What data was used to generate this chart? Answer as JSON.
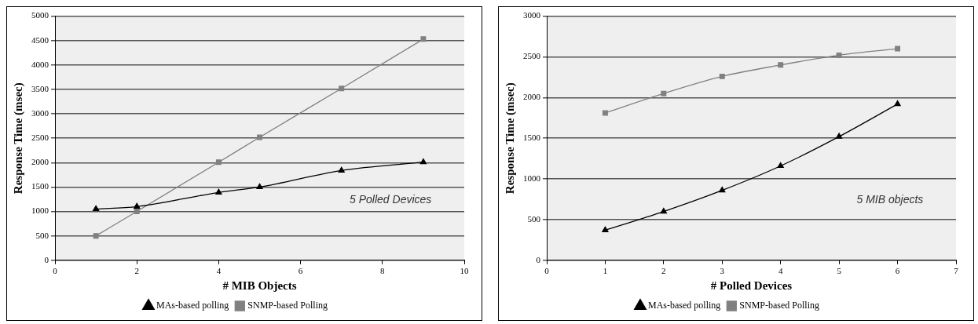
{
  "chart_data": [
    {
      "type": "line",
      "xlabel": "# MIB Objects",
      "ylabel": "Response Time (msec)",
      "xlim": [
        0,
        10
      ],
      "xticks": [
        0,
        2,
        4,
        6,
        8,
        10
      ],
      "ylim": [
        0,
        5000
      ],
      "yticks": [
        0,
        500,
        1000,
        1500,
        2000,
        2500,
        3000,
        3500,
        4000,
        4500,
        5000
      ],
      "grid": "y",
      "legend": "bottom",
      "annotations": [
        "5 Polled Devices"
      ],
      "x": [
        1,
        2,
        4,
        5,
        7,
        9
      ],
      "series": [
        {
          "name": "MAs-based polling",
          "color": "#000000",
          "marker": "triangle",
          "values": [
            1050,
            1100,
            1390,
            1500,
            1840,
            2010
          ]
        },
        {
          "name": "SNMP-based Polling",
          "color": "#808080",
          "marker": "square",
          "values": [
            500,
            1000,
            2010,
            2520,
            3520,
            4530
          ]
        }
      ]
    },
    {
      "type": "line",
      "xlabel": "# Polled Devices",
      "ylabel": "Response Time (msec)",
      "xlim": [
        0,
        7
      ],
      "xticks": [
        0,
        1,
        2,
        3,
        4,
        5,
        6,
        7
      ],
      "ylim": [
        0,
        3000
      ],
      "yticks": [
        0,
        500,
        1000,
        1500,
        2000,
        2500,
        3000
      ],
      "grid": "y",
      "legend": "bottom",
      "annotations": [
        "5 MIB objects"
      ],
      "x": [
        1,
        2,
        3,
        4,
        5,
        6
      ],
      "series": [
        {
          "name": "MAs-based polling",
          "color": "#000000",
          "marker": "triangle",
          "values": [
            370,
            600,
            860,
            1160,
            1520,
            1920
          ]
        },
        {
          "name": "SNMP-based Polling",
          "color": "#808080",
          "marker": "square",
          "values": [
            1810,
            2050,
            2260,
            2400,
            2520,
            2600
          ]
        }
      ]
    }
  ]
}
